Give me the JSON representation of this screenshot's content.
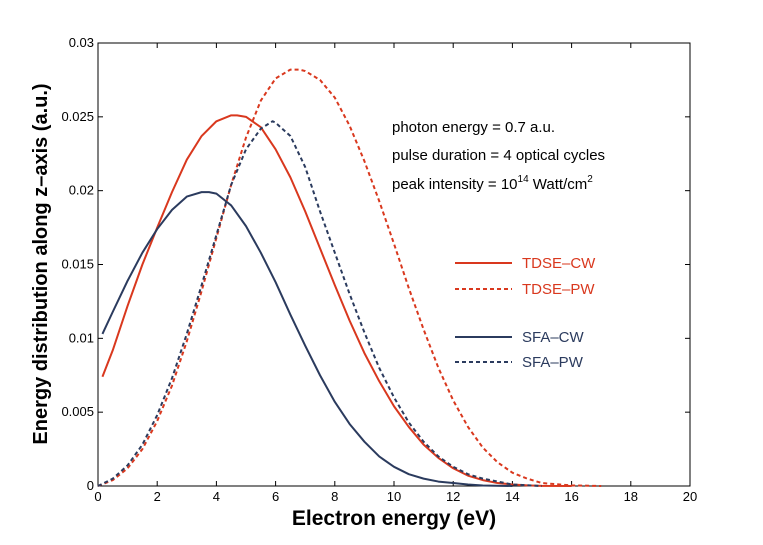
{
  "chart_data": {
    "type": "line",
    "title": "",
    "xlabel": "Electron energy (eV)",
    "ylabel": "Energy distribution along z–axis (a.u.)",
    "xlim": [
      0,
      20
    ],
    "ylim": [
      0,
      0.03
    ],
    "x_ticks": [
      0,
      2,
      4,
      6,
      8,
      10,
      12,
      14,
      16,
      18,
      20
    ],
    "x_tick_labels": [
      "0",
      "2",
      "4",
      "6",
      "8",
      "10",
      "12",
      "14",
      "16",
      "18",
      "20"
    ],
    "y_ticks": [
      0,
      0.005,
      0.01,
      0.015,
      0.02,
      0.025,
      0.03
    ],
    "y_tick_labels": [
      "0",
      "0.005",
      "0.01",
      "0.015",
      "0.02",
      "0.025",
      "0.03"
    ],
    "grid": false,
    "annotations": {
      "photon_energy": "photon energy = 0.7 a.u.",
      "pulse_duration": "pulse duration = 4 optical cycles",
      "peak_intensity_prefix": "peak intensity = 10",
      "peak_intensity_exp": "14",
      "peak_intensity_unit": " Watt/cm",
      "peak_intensity_unit_exp": "2"
    },
    "legend_position": "right",
    "series": [
      {
        "name": "TDSE–CW",
        "color": "#d9381e",
        "style": "solid",
        "x": [
          0.15,
          0.5,
          1.0,
          1.5,
          2.0,
          2.5,
          3.0,
          3.5,
          4.0,
          4.5,
          4.7,
          5.0,
          5.5,
          6.0,
          6.5,
          7.0,
          7.5,
          8.0,
          8.5,
          9.0,
          9.5,
          10.0,
          10.5,
          11.0,
          11.5,
          12.0,
          12.5,
          13.0,
          13.5,
          14.0,
          14.5,
          15.0,
          16.0
        ],
        "y": [
          0.0074,
          0.0092,
          0.0122,
          0.015,
          0.0175,
          0.0199,
          0.0221,
          0.0237,
          0.0247,
          0.0251,
          0.0251,
          0.025,
          0.0243,
          0.0228,
          0.0209,
          0.0186,
          0.0161,
          0.0136,
          0.0112,
          0.009,
          0.0071,
          0.0054,
          0.004,
          0.0028,
          0.0019,
          0.0012,
          0.0007,
          0.0004,
          0.0002,
          0.0001,
          4e-05,
          1e-05,
          0.0
        ]
      },
      {
        "name": "TDSE–PW",
        "color": "#d9381e",
        "style": "dashed",
        "x": [
          0.0,
          0.5,
          1.0,
          1.5,
          2.0,
          2.5,
          3.0,
          3.5,
          4.0,
          4.5,
          5.0,
          5.5,
          6.0,
          6.5,
          6.8,
          7.0,
          7.5,
          8.0,
          8.5,
          9.0,
          9.5,
          10.0,
          10.5,
          11.0,
          11.5,
          12.0,
          12.5,
          13.0,
          13.5,
          14.0,
          14.5,
          15.0,
          16.0,
          17.0
        ],
        "y": [
          0.0,
          0.0004,
          0.0012,
          0.0025,
          0.0044,
          0.0068,
          0.0098,
          0.0132,
          0.0168,
          0.0204,
          0.0236,
          0.0261,
          0.0276,
          0.0282,
          0.0282,
          0.0281,
          0.0275,
          0.0263,
          0.0244,
          0.022,
          0.0193,
          0.0164,
          0.0134,
          0.0106,
          0.008,
          0.0058,
          0.004,
          0.0026,
          0.0016,
          0.0009,
          0.0005,
          0.0002,
          4e-05,
          0.0
        ]
      },
      {
        "name": "SFA–CW",
        "color": "#2b3b5e",
        "style": "solid",
        "x": [
          0.15,
          0.5,
          1.0,
          1.5,
          2.0,
          2.5,
          3.0,
          3.5,
          3.75,
          4.0,
          4.5,
          5.0,
          5.5,
          6.0,
          6.5,
          7.0,
          7.5,
          8.0,
          8.5,
          9.0,
          9.5,
          10.0,
          10.5,
          11.0,
          11.5,
          12.0,
          12.5,
          13.0,
          14.0
        ],
        "y": [
          0.0103,
          0.0118,
          0.0139,
          0.0158,
          0.0174,
          0.0187,
          0.0196,
          0.0199,
          0.0199,
          0.0198,
          0.019,
          0.0176,
          0.0158,
          0.0138,
          0.0116,
          0.0095,
          0.0075,
          0.0057,
          0.0042,
          0.003,
          0.002,
          0.0013,
          0.0008,
          0.0005,
          0.0003,
          0.0002,
          0.0001,
          3e-05,
          0.0
        ]
      },
      {
        "name": "SFA–PW",
        "color": "#2b3b5e",
        "style": "dashed",
        "x": [
          0.0,
          0.5,
          1.0,
          1.5,
          2.0,
          2.5,
          3.0,
          3.5,
          4.0,
          4.5,
          5.0,
          5.5,
          5.9,
          6.0,
          6.5,
          7.0,
          7.5,
          8.0,
          8.5,
          9.0,
          9.5,
          10.0,
          10.5,
          11.0,
          11.5,
          12.0,
          12.5,
          13.0,
          13.5,
          14.0,
          15.0
        ],
        "y": [
          0.0,
          0.0005,
          0.0014,
          0.0028,
          0.0048,
          0.0073,
          0.0103,
          0.0136,
          0.017,
          0.0204,
          0.0228,
          0.0242,
          0.0247,
          0.0246,
          0.0237,
          0.0216,
          0.0186,
          0.0158,
          0.013,
          0.0104,
          0.008,
          0.006,
          0.0043,
          0.003,
          0.002,
          0.0013,
          0.0008,
          0.0005,
          0.0003,
          0.0001,
          0.0
        ]
      }
    ]
  }
}
